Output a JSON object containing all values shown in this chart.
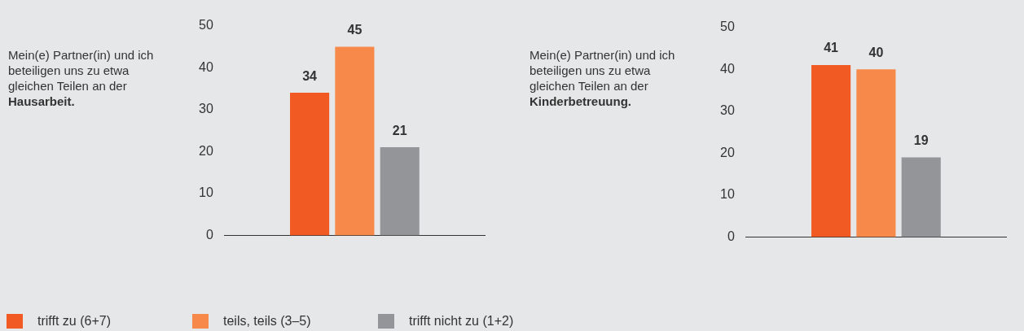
{
  "chart_data": [
    {
      "type": "bar",
      "title": "Mein(e) Partner(in) und ich beteiligen uns zu etwa gleichen Teilen an der Hausarbeit.",
      "categories": [
        null
      ],
      "series": [
        {
          "name": "trifft zu (6+7)",
          "color": "#f15a22",
          "values": [
            34
          ]
        },
        {
          "name": "teils, teils (3–5)",
          "color": "#f7894a",
          "values": [
            45
          ]
        },
        {
          "name": "trifft nicht zu (1+2)",
          "color": "#939598",
          "values": [
            21
          ]
        }
      ],
      "ylim": [
        0,
        50
      ],
      "yticks": [
        0,
        10,
        20,
        30,
        40,
        50
      ],
      "grid": false,
      "tick_labels": "y",
      "data_labels": true,
      "legend": "bottom"
    },
    {
      "type": "bar",
      "title": "Mein(e) Partner(in) und ich beteiligen uns zu etwa gleichen Teilen an der Kinderbetreuung.",
      "categories": [
        null
      ],
      "series": [
        {
          "color": "#f15a22",
          "values": [
            41
          ]
        },
        {
          "color": "#f7894a",
          "values": [
            40
          ]
        },
        {
          "color": "#939598",
          "values": [
            19
          ]
        }
      ],
      "ylim": [
        0,
        50
      ],
      "yticks": [
        0,
        10,
        20,
        30,
        40,
        50
      ],
      "grid": false,
      "tick_labels": "y",
      "data_labels": true
    }
  ]
}
